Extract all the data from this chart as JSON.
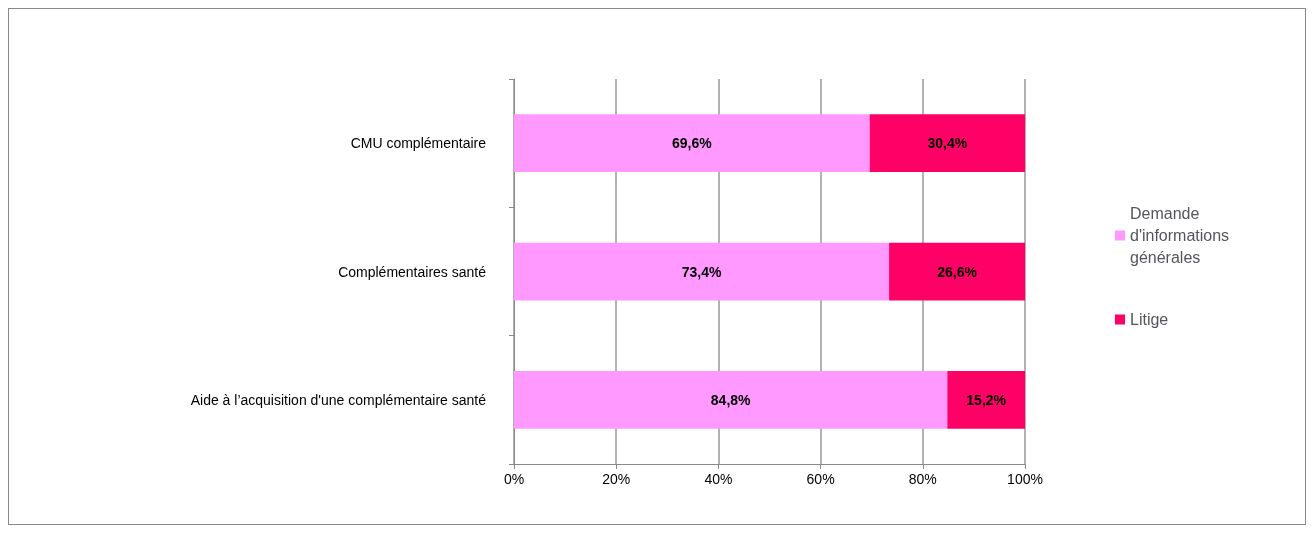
{
  "chart_data": {
    "type": "bar",
    "orientation": "horizontal",
    "stacked": true,
    "categories": [
      "CMU complémentaire",
      "Complémentaires santé",
      "Aide à l’acquisition d'une complémentaire santé"
    ],
    "series": [
      {
        "name": "Demande d'informations générales",
        "color": "#ff99ff",
        "values": [
          69.6,
          73.4,
          84.8
        ],
        "value_labels": [
          "69,6%",
          "73,4%",
          "84,8%"
        ]
      },
      {
        "name": "Litige",
        "color": "#ff0066",
        "values": [
          30.4,
          26.6,
          15.2
        ],
        "value_labels": [
          "30,4%",
          "26,6%",
          "15,2%"
        ]
      }
    ],
    "xlim": [
      0,
      100
    ],
    "xticks": [
      {
        "value": 0,
        "label": "0%"
      },
      {
        "value": 20,
        "label": "20%"
      },
      {
        "value": 40,
        "label": "40%"
      },
      {
        "value": 60,
        "label": "60%"
      },
      {
        "value": 80,
        "label": "80%"
      },
      {
        "value": 100,
        "label": "100%"
      }
    ],
    "grid": "x",
    "legend": "right"
  }
}
